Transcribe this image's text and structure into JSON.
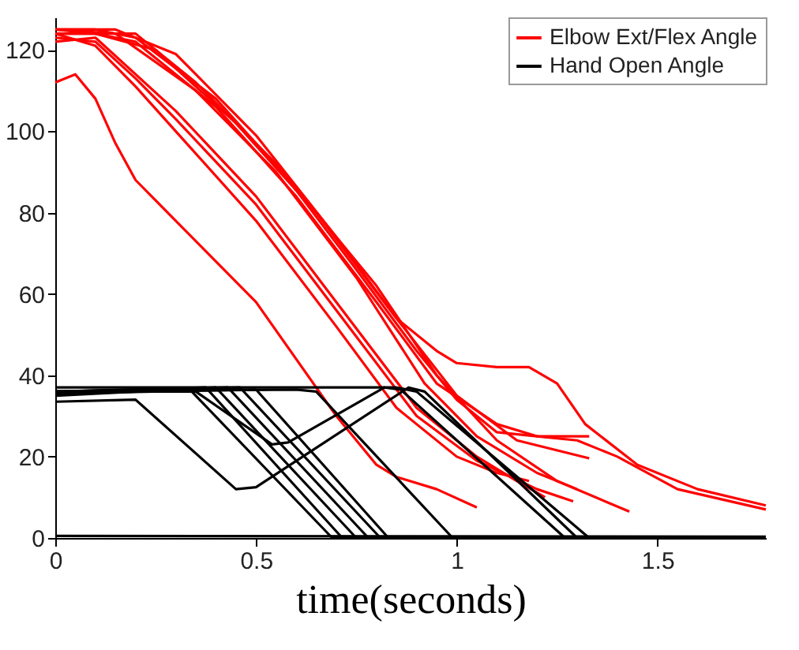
{
  "chart_data": {
    "type": "line",
    "xlabel": "time(seconds)",
    "xlim": [
      0,
      1.77
    ],
    "ylim": [
      0,
      128
    ],
    "xticks": [
      0,
      0.5,
      1,
      1.5
    ],
    "yticks": [
      0,
      20,
      40,
      60,
      80,
      100,
      120
    ],
    "grid": false,
    "legend": "top right",
    "marker": "none",
    "line_style": "solid",
    "series": [
      {
        "name": "Elbow Ext/Flex Angle",
        "color": "#ff0000",
        "x": [
          0,
          0.05,
          0.1,
          0.15,
          0.2,
          0.3,
          0.5,
          0.7,
          0.8,
          0.85,
          0.95,
          1.05
        ],
        "values": [
          112,
          114,
          108,
          97,
          88,
          78,
          58,
          30,
          18,
          15,
          12,
          7.5
        ]
      },
      {
        "color": "#ff0000",
        "x": [
          0,
          0.1,
          0.2,
          0.3,
          0.5,
          0.7,
          0.85,
          1.0,
          1.1,
          1.18
        ],
        "values": [
          124,
          121,
          111,
          100,
          78,
          52,
          32,
          20,
          16,
          14
        ]
      },
      {
        "color": "#ff0000",
        "x": [
          0,
          0.1,
          0.2,
          0.3,
          0.5,
          0.7,
          0.9,
          1.05,
          1.2,
          1.29
        ],
        "values": [
          123,
          122,
          113,
          103,
          82,
          56,
          30,
          19,
          12,
          9
        ]
      },
      {
        "color": "#ff0000",
        "x": [
          0,
          0.1,
          0.2,
          0.4,
          0.6,
          0.8,
          0.95,
          1.1,
          1.25,
          1.43
        ],
        "values": [
          125,
          125,
          123,
          108,
          86,
          62,
          40,
          24,
          14,
          6.5
        ]
      },
      {
        "color": "#ff0000",
        "x": [
          0,
          0.1,
          0.25,
          0.45,
          0.65,
          0.85,
          1.0,
          1.15,
          1.33
        ],
        "values": [
          124,
          124,
          120,
          102,
          80,
          54,
          35,
          24,
          19.6
        ]
      },
      {
        "color": "#ff0000",
        "x": [
          0,
          0.1,
          0.2,
          0.4,
          0.6,
          0.8,
          0.95,
          1.1,
          1.2,
          1.33
        ],
        "values": [
          125,
          124,
          122,
          106,
          84,
          58,
          38,
          28,
          25,
          25
        ]
      },
      {
        "color": "#ff0000",
        "x": [
          0,
          0.15,
          0.3,
          0.5,
          0.7,
          0.85,
          0.95,
          1.0,
          1.1,
          1.18,
          1.25,
          1.32,
          1.45,
          1.6,
          1.77
        ],
        "values": [
          125,
          125,
          119,
          99,
          74,
          54,
          46,
          43,
          42,
          42,
          38,
          28,
          18,
          12,
          8
        ]
      },
      {
        "color": "#ff0000",
        "x": [
          0,
          0.2,
          0.35,
          0.55,
          0.75,
          0.9,
          1.0,
          1.1,
          1.2,
          1.3,
          1.4,
          1.55,
          1.77
        ],
        "values": [
          124,
          124,
          112,
          92,
          66,
          46,
          34,
          26,
          25,
          24,
          20,
          12,
          7
        ]
      },
      {
        "color": "#ff0000",
        "x": [
          0,
          0.1,
          0.3,
          0.5,
          0.7,
          0.9,
          1.05,
          1.15,
          1.22
        ],
        "values": [
          122,
          123,
          105,
          84,
          58,
          32,
          20,
          14,
          10
        ]
      },
      {
        "color": "#ff0000",
        "x": [
          0,
          0.15,
          0.35,
          0.55,
          0.75,
          0.92,
          1.05,
          1.2,
          1.3
        ],
        "values": [
          125,
          124,
          110,
          90,
          64,
          38,
          25,
          16,
          12
        ]
      },
      {
        "name": "Hand Open Angle",
        "color": "#000000",
        "x": [
          0,
          1.77
        ],
        "values": [
          0.5,
          0.3
        ]
      },
      {
        "color": "#000000",
        "x": [
          0,
          0.2,
          0.45,
          0.5,
          0.88,
          0.92,
          1.3,
          1.77
        ],
        "values": [
          33.5,
          34,
          12,
          12.5,
          37,
          36,
          0,
          0
        ]
      },
      {
        "color": "#000000",
        "x": [
          0,
          0.35,
          0.54,
          0.58,
          0.82,
          0.86,
          1.27,
          1.77
        ],
        "values": [
          36,
          36,
          23,
          23.5,
          37,
          36.5,
          0,
          0
        ]
      },
      {
        "color": "#000000",
        "x": [
          0,
          0.85,
          0.9,
          1.33,
          1.77
        ],
        "values": [
          37,
          37,
          36,
          0,
          0
        ]
      },
      {
        "color": "#000000",
        "x": [
          0,
          0.34,
          0.69,
          1.77
        ],
        "values": [
          36,
          36,
          0,
          0
        ]
      },
      {
        "color": "#000000",
        "x": [
          0,
          0.375,
          0.715,
          1.77
        ],
        "values": [
          36,
          37,
          0,
          0
        ]
      },
      {
        "color": "#000000",
        "x": [
          0,
          0.4,
          0.75,
          1.77
        ],
        "values": [
          35,
          37,
          0,
          0
        ]
      },
      {
        "color": "#000000",
        "x": [
          0,
          0.43,
          0.78,
          1.77
        ],
        "values": [
          36,
          37,
          0,
          0
        ]
      },
      {
        "color": "#000000",
        "x": [
          0,
          0.46,
          0.81,
          1.77
        ],
        "values": [
          36,
          37,
          0,
          0
        ]
      },
      {
        "color": "#000000",
        "x": [
          0,
          0.5,
          0.83,
          1.77
        ],
        "values": [
          35.5,
          36.5,
          0,
          0
        ]
      },
      {
        "color": "#000000",
        "x": [
          0,
          0.6,
          0.65,
          0.99,
          1.77
        ],
        "values": [
          36,
          36.5,
          36,
          0,
          0
        ]
      }
    ]
  }
}
